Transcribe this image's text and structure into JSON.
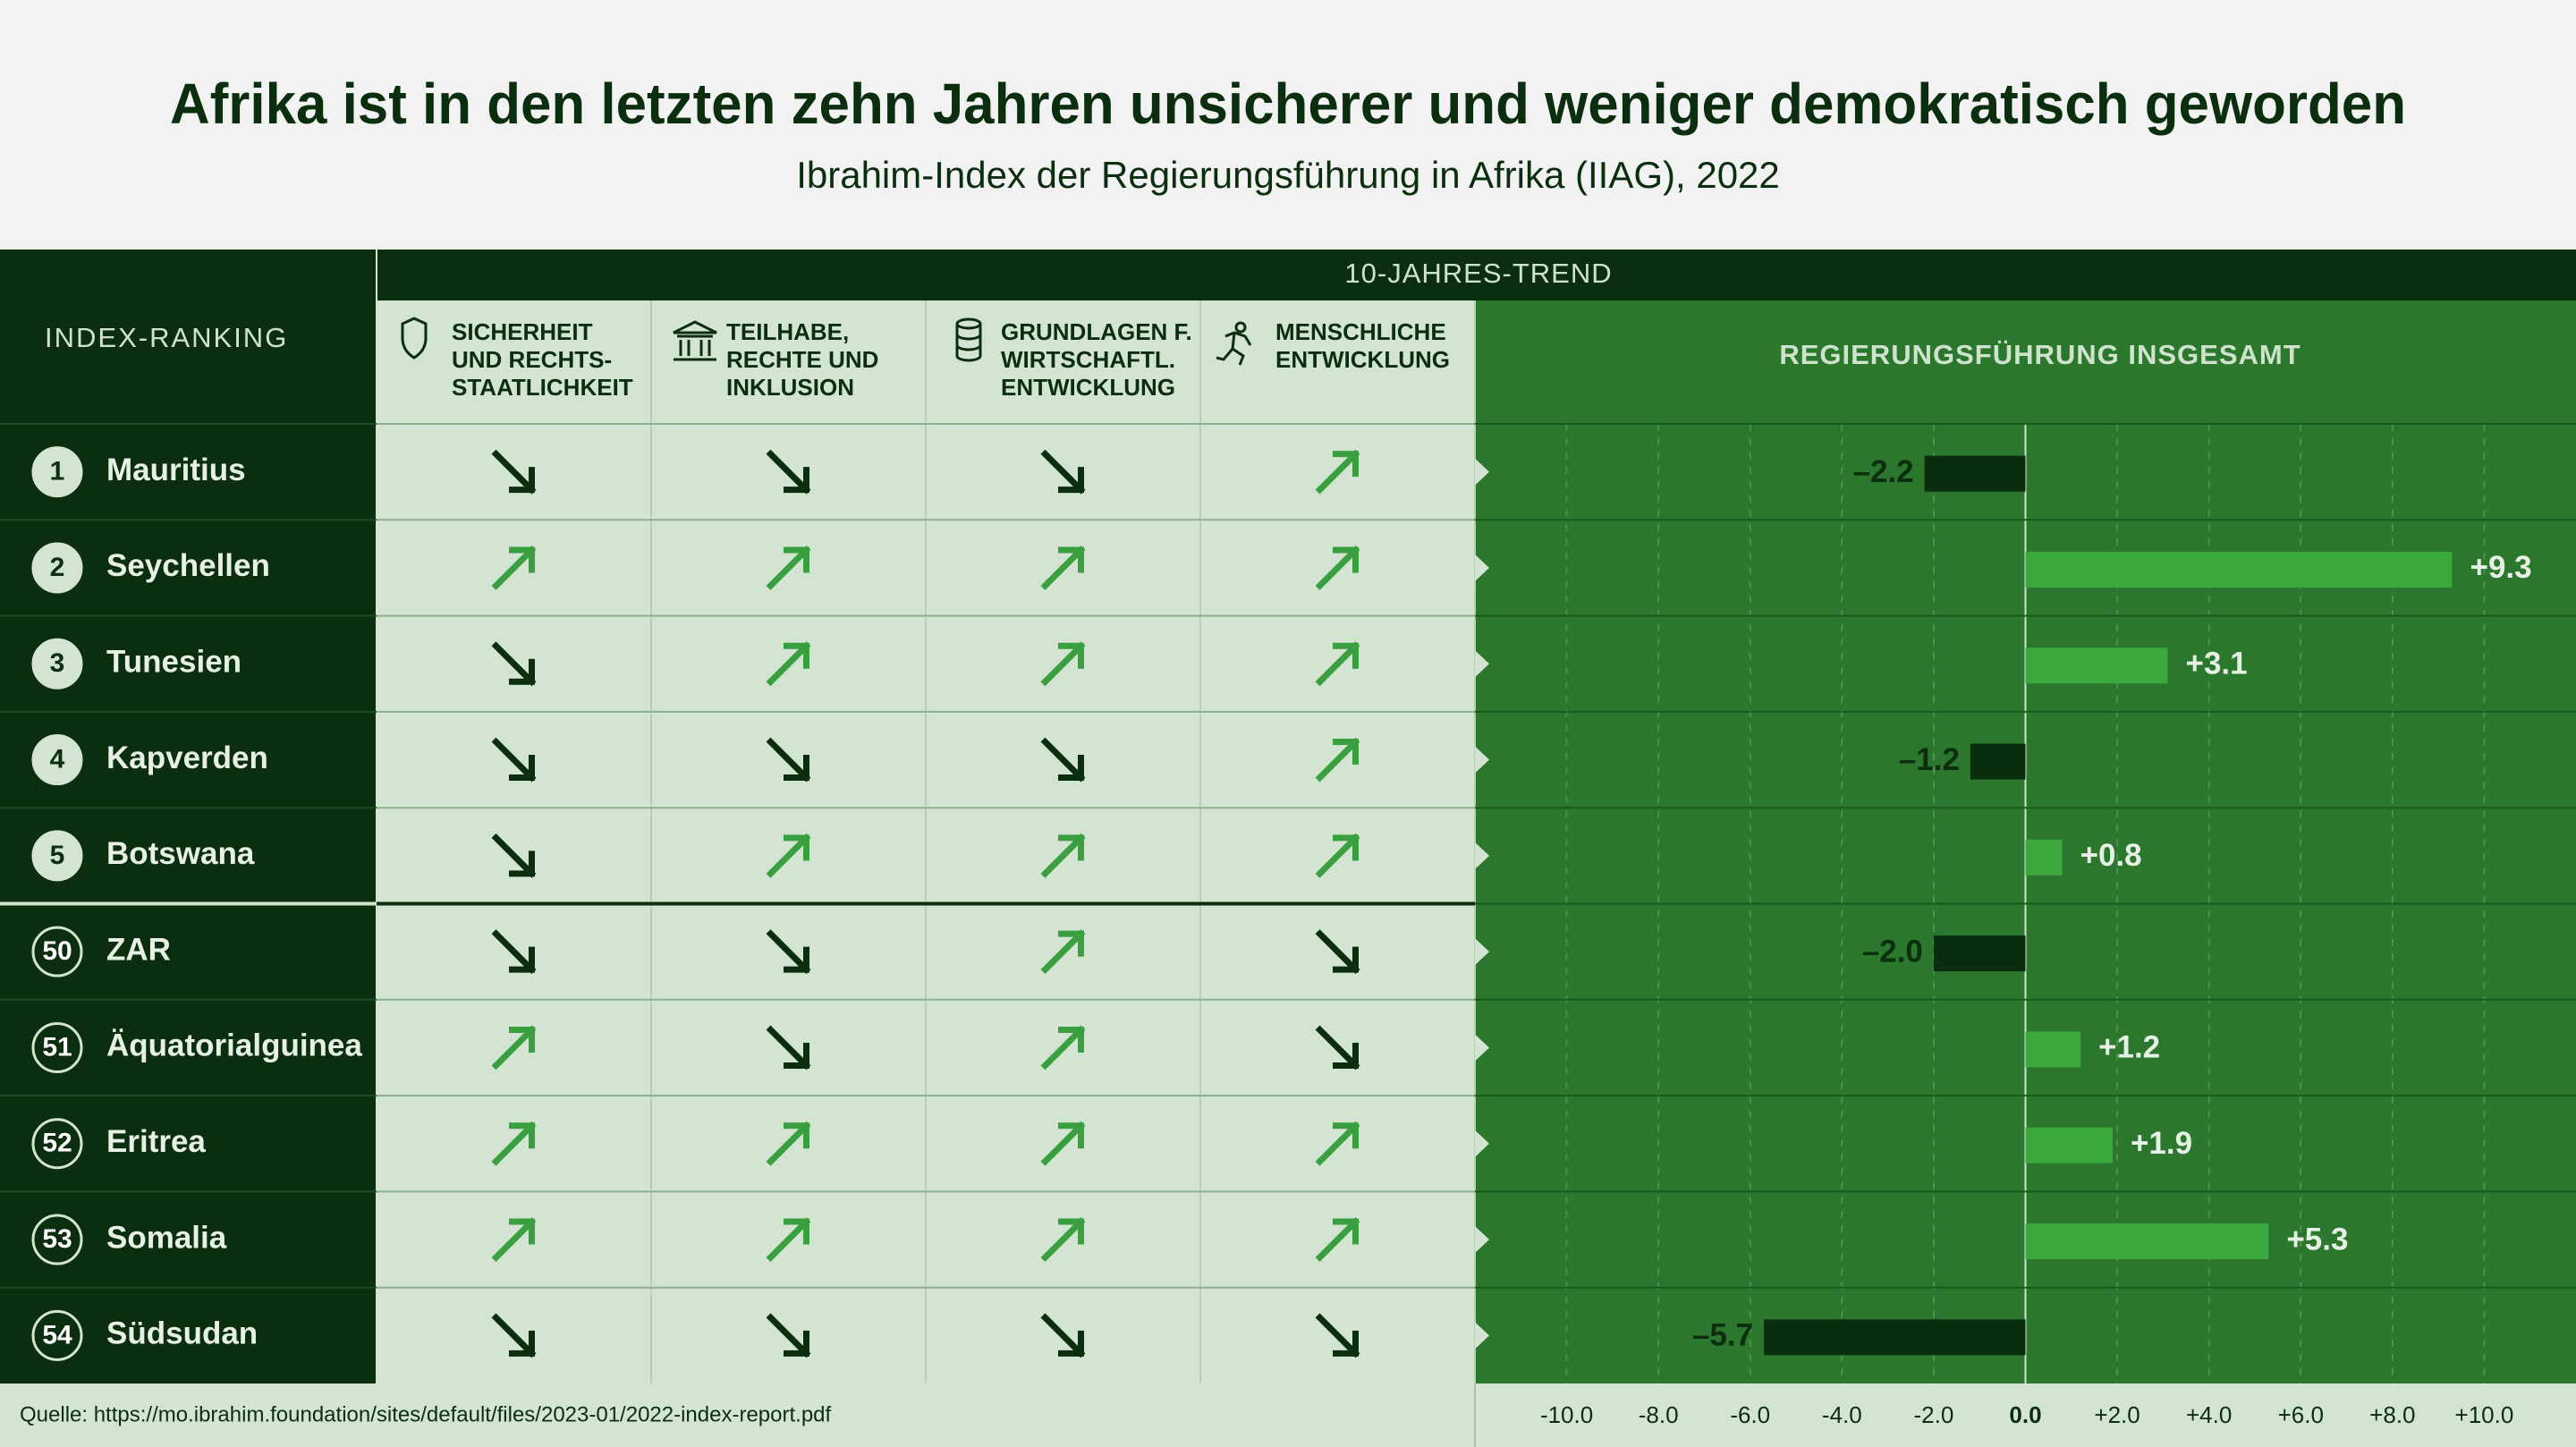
{
  "header": {
    "title": "Afrika ist in den letzten zehn Jahren unsicherer und weniger demokratisch geworden",
    "subtitle": "Ibrahim-Index der Regierungsführung in Afrika (IIAG), 2022"
  },
  "table": {
    "group_label": "10-JAHRES-TREND",
    "rank_header": "INDEX-RANKING",
    "columns": [
      {
        "lines": [
          "SICHERHEIT",
          "UND RECHTS-",
          "STAATLICHKEIT"
        ]
      },
      {
        "lines": [
          "TEILHABE,",
          "RECHTE UND",
          "INKLUSION"
        ]
      },
      {
        "lines": [
          "GRUNDLAGEN F.",
          "WIRTSCHAFTL.",
          "ENTWICKLUNG"
        ]
      },
      {
        "lines": [
          "MENSCHLICHE",
          "ENTWICKLUNG"
        ]
      }
    ],
    "rows": [
      {
        "rank": 1,
        "trends": [
          "down",
          "down",
          "down",
          "up"
        ]
      },
      {
        "rank": 2,
        "trends": [
          "up",
          "up",
          "up",
          "up"
        ]
      },
      {
        "rank": 3,
        "trends": [
          "down",
          "up",
          "up",
          "up"
        ]
      },
      {
        "rank": 4,
        "trends": [
          "down",
          "down",
          "down",
          "up"
        ]
      },
      {
        "rank": 5,
        "trends": [
          "down",
          "up",
          "up",
          "up"
        ]
      },
      {
        "rank": 50,
        "trends": [
          "down",
          "down",
          "up",
          "down"
        ]
      },
      {
        "rank": 51,
        "trends": [
          "up",
          "down",
          "up",
          "down"
        ]
      },
      {
        "rank": 52,
        "trends": [
          "up",
          "up",
          "up",
          "up"
        ]
      },
      {
        "rank": 53,
        "trends": [
          "up",
          "up",
          "up",
          "up"
        ]
      },
      {
        "rank": 54,
        "trends": [
          "down",
          "down",
          "down",
          "down"
        ]
      }
    ]
  },
  "chart_data": {
    "type": "bar",
    "orientation": "horizontal",
    "title": "REGIERUNGSFÜHRUNG INSGESAMT",
    "categories": [
      "Mauritius",
      "Seychellen",
      "Tunesien",
      "Kapverden",
      "Botswana",
      "ZAR",
      "Äquatorialguinea",
      "Eritrea",
      "Somalia",
      "Südsudan"
    ],
    "values": [
      -2.2,
      9.3,
      3.1,
      -1.2,
      0.8,
      -2.0,
      1.2,
      1.9,
      5.3,
      -5.7
    ],
    "value_labels": [
      "–2.2",
      "+9.3",
      "+3.1",
      "–1.2",
      "+0.8",
      "–2.0",
      "+1.2",
      "+1.9",
      "+5.3",
      "–5.7"
    ],
    "positive_color": "#3aa83d",
    "negative_color": "#0a2d0d",
    "xlim": [
      -12,
      12
    ],
    "xticks": [
      {
        "value": -10,
        "label": "-10.0"
      },
      {
        "value": -8,
        "label": "-8.0"
      },
      {
        "value": -6,
        "label": "-6.0"
      },
      {
        "value": -4,
        "label": "-4.0"
      },
      {
        "value": -2,
        "label": "-2.0"
      },
      {
        "value": 0,
        "label": "0.0"
      },
      {
        "value": 2,
        "label": "+2.0"
      },
      {
        "value": 4,
        "label": "+4.0"
      },
      {
        "value": 6,
        "label": "+6.0"
      },
      {
        "value": 8,
        "label": "+8.0"
      },
      {
        "value": 10,
        "label": "+10.0"
      }
    ],
    "grid": true
  },
  "source": "Quelle: https://mo.ibrahim.foundation/sites/default/files/2023-01/2022-index-report.pdf"
}
